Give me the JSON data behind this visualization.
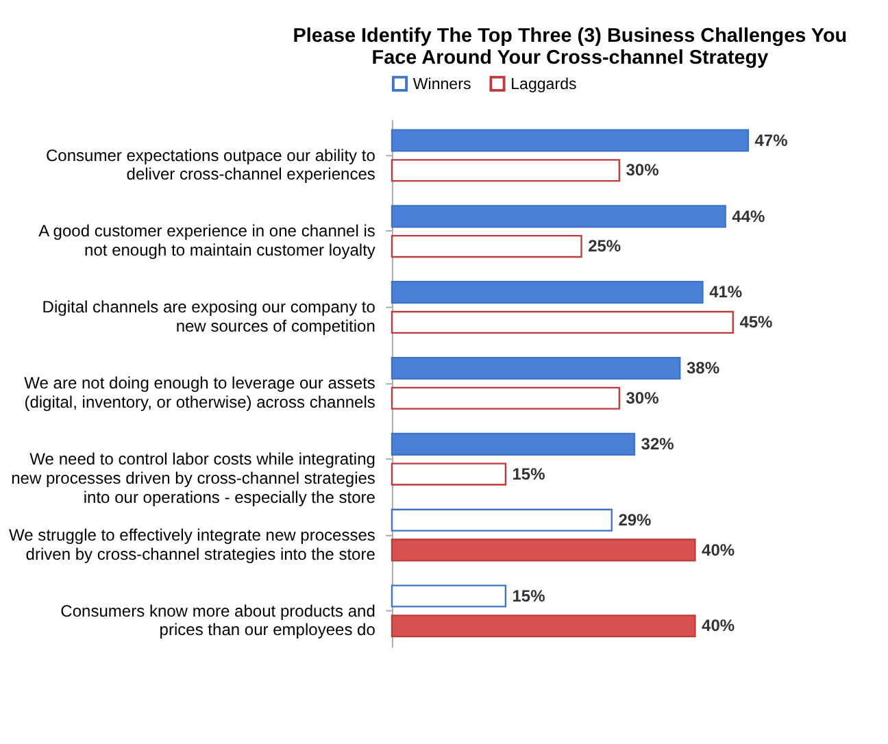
{
  "chart_data": {
    "type": "bar",
    "orientation": "horizontal",
    "title": "Please Identify The Top Three (3) Business Challenges You\nFace Around Your Cross-channel Strategy",
    "legend": "top",
    "categories": [
      "Consumer expectations outpace our ability to\ndeliver cross-channel experiences",
      "A good customer experience in one channel is\nnot enough to maintain customer loyalty",
      "Digital channels are exposing our company to\nnew sources of competition",
      "We are not doing enough to leverage our assets\n(digital, inventory, or otherwise) across channels",
      "We need to control labor costs while integrating\nnew processes driven by cross-channel strategies\ninto our operations - especially the store",
      "We struggle to effectively integrate new processes\ndriven by cross-channel strategies into the store",
      "Consumers know more about products and\nprices than our employees do"
    ],
    "series": [
      {
        "name": "Winners",
        "color": "#3f73c9",
        "colors": [
          "#4a80d6",
          "#4a80d6",
          "#4a80d6",
          "#4a80d6",
          "#4a80d6",
          "#ffffff",
          "#ffffff"
        ],
        "values": [
          47,
          44,
          41,
          38,
          32,
          29,
          15
        ],
        "value_labels": [
          "47%",
          "44%",
          "41%",
          "38%",
          "32%",
          "29%",
          "15%"
        ]
      },
      {
        "name": "Laggards",
        "color": "#c0393b",
        "colors": [
          "#ffffff",
          "#ffffff",
          "#ffffff",
          "#ffffff",
          "#ffffff",
          "#d9514f",
          "#d9514f"
        ],
        "values": [
          30,
          25,
          45,
          30,
          15,
          40,
          40
        ],
        "value_labels": [
          "30%",
          "25%",
          "45%",
          "30%",
          "15%",
          "40%",
          "40%"
        ]
      }
    ]
  }
}
